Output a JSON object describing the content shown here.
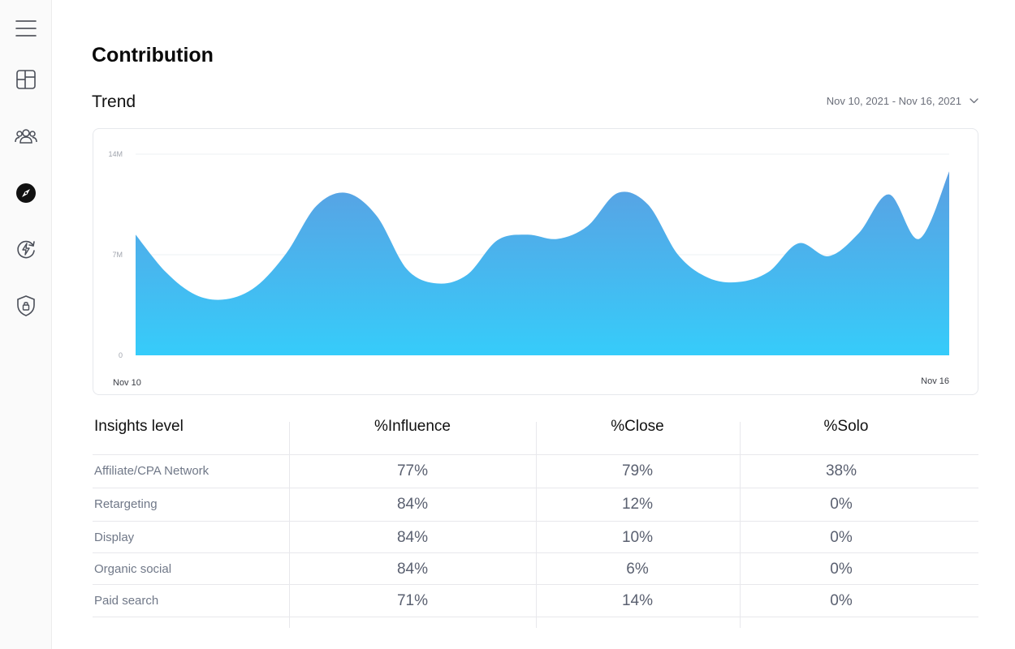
{
  "sidebar": {
    "items": [
      {
        "name": "menu",
        "icon": "hamburger-menu-icon",
        "active": false
      },
      {
        "name": "dashboard",
        "icon": "dashboard-layout-icon",
        "active": false
      },
      {
        "name": "audience",
        "icon": "users-group-icon",
        "active": false
      },
      {
        "name": "explore",
        "icon": "compass-icon",
        "active": true
      },
      {
        "name": "automation",
        "icon": "lightning-refresh-icon",
        "active": false
      },
      {
        "name": "security",
        "icon": "shield-lock-icon",
        "active": false
      }
    ]
  },
  "page": {
    "title": "Contribution"
  },
  "trend": {
    "title": "Trend",
    "date_range": "Nov 10, 2021 - Nov 16, 2021"
  },
  "chart_data": {
    "type": "area",
    "y_ticks": [
      "14M",
      "7M",
      "0"
    ],
    "ylim": [
      0,
      14000000
    ],
    "x_start_label": "Nov 10",
    "x_end_label": "Nov 16",
    "grid": true,
    "fill_colors": [
      "#5b9fe2",
      "#36ccfa"
    ],
    "values": [
      8400000,
      5800000,
      4200000,
      3900000,
      4800000,
      7100000,
      10400000,
      11300000,
      9700000,
      6000000,
      5000000,
      5600000,
      8000000,
      8400000,
      8100000,
      9000000,
      11300000,
      10500000,
      7000000,
      5400000,
      5100000,
      5800000,
      7800000,
      6900000,
      8500000,
      11200000,
      8100000,
      12800000
    ]
  },
  "table": {
    "headers": [
      "Insights level",
      "%Influence",
      "%Close",
      "%Solo"
    ],
    "rows": [
      {
        "label": "Affiliate/CPA Network",
        "influence": "77%",
        "close": "79%",
        "solo": "38%"
      },
      {
        "label": "Retargeting",
        "influence": "84%",
        "close": "12%",
        "solo": "0%"
      },
      {
        "label": "Display",
        "influence": "84%",
        "close": "10%",
        "solo": "0%"
      },
      {
        "label": "Organic social",
        "influence": "84%",
        "close": "6%",
        "solo": "0%"
      },
      {
        "label": "Paid search",
        "influence": "71%",
        "close": "14%",
        "solo": "0%"
      }
    ]
  }
}
